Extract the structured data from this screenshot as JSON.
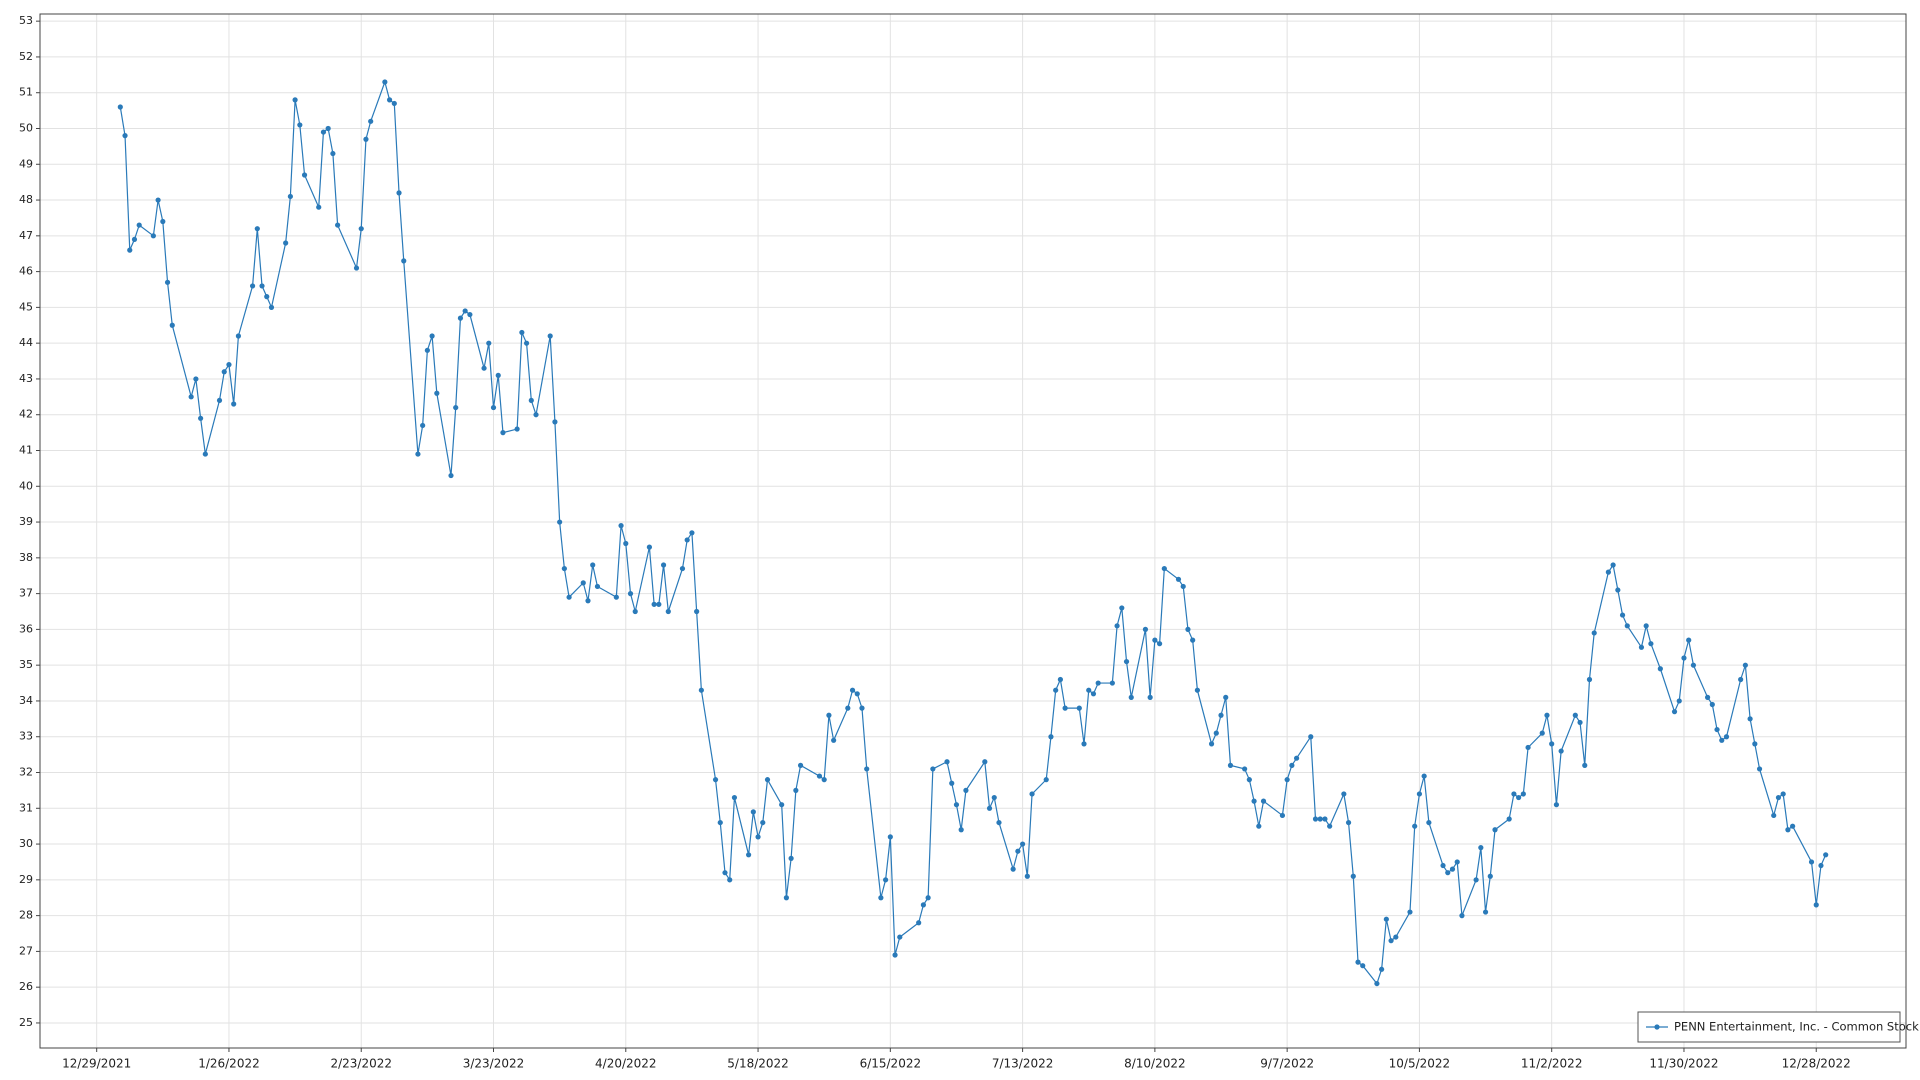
{
  "chart_data": {
    "type": "line",
    "x": [
      "2022-01-03",
      "2022-01-04",
      "2022-01-05",
      "2022-01-06",
      "2022-01-07",
      "2022-01-10",
      "2022-01-11",
      "2022-01-12",
      "2022-01-13",
      "2022-01-14",
      "2022-01-18",
      "2022-01-19",
      "2022-01-20",
      "2022-01-21",
      "2022-01-24",
      "2022-01-25",
      "2022-01-26",
      "2022-01-27",
      "2022-01-28",
      "2022-01-31",
      "2022-02-01",
      "2022-02-02",
      "2022-02-03",
      "2022-02-04",
      "2022-02-07",
      "2022-02-08",
      "2022-02-09",
      "2022-02-10",
      "2022-02-11",
      "2022-02-14",
      "2022-02-15",
      "2022-02-16",
      "2022-02-17",
      "2022-02-18",
      "2022-02-22",
      "2022-02-23",
      "2022-02-24",
      "2022-02-25",
      "2022-02-28",
      "2022-03-01",
      "2022-03-02",
      "2022-03-03",
      "2022-03-04",
      "2022-03-07",
      "2022-03-08",
      "2022-03-09",
      "2022-03-10",
      "2022-03-11",
      "2022-03-14",
      "2022-03-15",
      "2022-03-16",
      "2022-03-17",
      "2022-03-18",
      "2022-03-21",
      "2022-03-22",
      "2022-03-23",
      "2022-03-24",
      "2022-03-25",
      "2022-03-28",
      "2022-03-29",
      "2022-03-30",
      "2022-03-31",
      "2022-04-01",
      "2022-04-04",
      "2022-04-05",
      "2022-04-06",
      "2022-04-07",
      "2022-04-08",
      "2022-04-11",
      "2022-04-12",
      "2022-04-13",
      "2022-04-14",
      "2022-04-18",
      "2022-04-19",
      "2022-04-20",
      "2022-04-21",
      "2022-04-22",
      "2022-04-25",
      "2022-04-26",
      "2022-04-27",
      "2022-04-28",
      "2022-04-29",
      "2022-05-02",
      "2022-05-03",
      "2022-05-04",
      "2022-05-05",
      "2022-05-06",
      "2022-05-09",
      "2022-05-10",
      "2022-05-11",
      "2022-05-12",
      "2022-05-13",
      "2022-05-16",
      "2022-05-17",
      "2022-05-18",
      "2022-05-19",
      "2022-05-20",
      "2022-05-23",
      "2022-05-24",
      "2022-05-25",
      "2022-05-26",
      "2022-05-27",
      "2022-05-31",
      "2022-06-01",
      "2022-06-02",
      "2022-06-03",
      "2022-06-06",
      "2022-06-07",
      "2022-06-08",
      "2022-06-09",
      "2022-06-10",
      "2022-06-13",
      "2022-06-14",
      "2022-06-15",
      "2022-06-16",
      "2022-06-17",
      "2022-06-21",
      "2022-06-22",
      "2022-06-23",
      "2022-06-24",
      "2022-06-27",
      "2022-06-28",
      "2022-06-29",
      "2022-06-30",
      "2022-07-01",
      "2022-07-05",
      "2022-07-06",
      "2022-07-07",
      "2022-07-08",
      "2022-07-11",
      "2022-07-12",
      "2022-07-13",
      "2022-07-14",
      "2022-07-15",
      "2022-07-18",
      "2022-07-19",
      "2022-07-20",
      "2022-07-21",
      "2022-07-22",
      "2022-07-25",
      "2022-07-26",
      "2022-07-27",
      "2022-07-28",
      "2022-07-29",
      "2022-08-01",
      "2022-08-02",
      "2022-08-03",
      "2022-08-04",
      "2022-08-05",
      "2022-08-08",
      "2022-08-09",
      "2022-08-10",
      "2022-08-11",
      "2022-08-12",
      "2022-08-15",
      "2022-08-16",
      "2022-08-17",
      "2022-08-18",
      "2022-08-19",
      "2022-08-22",
      "2022-08-23",
      "2022-08-24",
      "2022-08-25",
      "2022-08-26",
      "2022-08-29",
      "2022-08-30",
      "2022-08-31",
      "2022-09-01",
      "2022-09-02",
      "2022-09-06",
      "2022-09-07",
      "2022-09-08",
      "2022-09-09",
      "2022-09-12",
      "2022-09-13",
      "2022-09-14",
      "2022-09-15",
      "2022-09-16",
      "2022-09-19",
      "2022-09-20",
      "2022-09-21",
      "2022-09-22",
      "2022-09-23",
      "2022-09-26",
      "2022-09-27",
      "2022-09-28",
      "2022-09-29",
      "2022-09-30",
      "2022-10-03",
      "2022-10-04",
      "2022-10-05",
      "2022-10-06",
      "2022-10-07",
      "2022-10-10",
      "2022-10-11",
      "2022-10-12",
      "2022-10-13",
      "2022-10-14",
      "2022-10-17",
      "2022-10-18",
      "2022-10-19",
      "2022-10-20",
      "2022-10-21",
      "2022-10-24",
      "2022-10-25",
      "2022-10-26",
      "2022-10-27",
      "2022-10-28",
      "2022-10-31",
      "2022-11-01",
      "2022-11-02",
      "2022-11-03",
      "2022-11-04",
      "2022-11-07",
      "2022-11-08",
      "2022-11-09",
      "2022-11-10",
      "2022-11-11",
      "2022-11-14",
      "2022-11-15",
      "2022-11-16",
      "2022-11-17",
      "2022-11-18",
      "2022-11-21",
      "2022-11-22",
      "2022-11-23",
      "2022-11-25",
      "2022-11-28",
      "2022-11-29",
      "2022-11-30",
      "2022-12-01",
      "2022-12-02",
      "2022-12-05",
      "2022-12-06",
      "2022-12-07",
      "2022-12-08",
      "2022-12-09",
      "2022-12-12",
      "2022-12-13",
      "2022-12-14",
      "2022-12-15",
      "2022-12-16",
      "2022-12-19",
      "2022-12-20",
      "2022-12-21",
      "2022-12-22",
      "2022-12-23",
      "2022-12-27",
      "2022-12-28",
      "2022-12-29",
      "2022-12-30"
    ],
    "series": [
      {
        "name": "PENN Entertainment, Inc. - Common Stock",
        "color": "#2a7ab9",
        "values": [
          50.6,
          49.8,
          46.6,
          46.9,
          47.3,
          47.0,
          48.0,
          47.4,
          45.7,
          44.5,
          42.5,
          43.0,
          41.9,
          40.9,
          42.4,
          43.2,
          43.4,
          42.3,
          44.2,
          45.6,
          47.2,
          45.6,
          45.3,
          45.0,
          46.8,
          48.1,
          50.8,
          50.1,
          48.7,
          47.8,
          49.9,
          50.0,
          49.3,
          47.3,
          46.1,
          47.2,
          49.7,
          50.2,
          51.3,
          50.8,
          50.7,
          48.2,
          46.3,
          40.9,
          41.7,
          43.8,
          44.2,
          42.6,
          40.3,
          42.2,
          44.7,
          44.9,
          44.8,
          43.3,
          44.0,
          42.2,
          43.1,
          41.5,
          41.6,
          44.3,
          44.0,
          42.4,
          42.0,
          44.2,
          41.8,
          39.0,
          37.7,
          36.9,
          37.3,
          36.8,
          37.8,
          37.2,
          36.9,
          38.9,
          38.4,
          37.0,
          36.5,
          38.3,
          36.7,
          36.7,
          37.8,
          36.5,
          37.7,
          38.5,
          38.7,
          36.5,
          34.3,
          31.8,
          30.6,
          29.2,
          29.0,
          31.3,
          29.7,
          30.9,
          30.2,
          30.6,
          31.8,
          31.1,
          28.5,
          29.6,
          31.5,
          32.2,
          31.9,
          31.8,
          33.6,
          32.9,
          33.8,
          34.3,
          34.2,
          33.8,
          32.1,
          28.5,
          29.0,
          30.2,
          26.9,
          27.4,
          27.8,
          28.3,
          28.5,
          32.1,
          32.3,
          31.7,
          31.1,
          30.4,
          31.5,
          32.3,
          31.0,
          31.3,
          30.6,
          29.3,
          29.8,
          30.0,
          29.1,
          31.4,
          31.8,
          33.0,
          34.3,
          34.6,
          33.8,
          33.8,
          32.8,
          34.3,
          34.2,
          34.5,
          34.5,
          36.1,
          36.6,
          35.1,
          34.1,
          36.0,
          34.1,
          35.7,
          35.6,
          37.7,
          37.4,
          37.2,
          36.0,
          35.7,
          34.3,
          32.8,
          33.1,
          33.6,
          34.1,
          32.2,
          32.1,
          31.8,
          31.2,
          30.5,
          31.2,
          30.8,
          31.8,
          32.2,
          32.4,
          33.0,
          30.7,
          30.7,
          30.7,
          30.5,
          31.4,
          30.6,
          29.1,
          26.7,
          26.6,
          26.1,
          26.5,
          27.9,
          27.3,
          27.4,
          28.1,
          30.5,
          31.4,
          31.9,
          30.6,
          29.4,
          29.2,
          29.3,
          29.5,
          28.0,
          29.0,
          29.9,
          28.1,
          29.1,
          30.4,
          30.7,
          31.4,
          31.3,
          31.4,
          32.7,
          33.1,
          33.6,
          32.8,
          31.1,
          32.6,
          33.6,
          33.4,
          32.2,
          34.6,
          35.9,
          37.6,
          37.8,
          37.1,
          36.4,
          36.1,
          35.5,
          36.1,
          35.6,
          34.9,
          33.7,
          34.0,
          35.2,
          35.7,
          35.0,
          34.1,
          33.9,
          33.2,
          32.9,
          33.0,
          34.6,
          35.0,
          33.5,
          32.8,
          32.1,
          30.8,
          31.3,
          31.4,
          30.4,
          30.5,
          29.5,
          28.3,
          29.4,
          29.7
        ]
      }
    ],
    "xlim": [
      "2021-12-17",
      "2023-01-16"
    ],
    "xticks": [
      {
        "value": "2021-12-29",
        "label": "12/29/2021"
      },
      {
        "value": "2022-01-26",
        "label": "1/26/2022"
      },
      {
        "value": "2022-02-23",
        "label": "2/23/2022"
      },
      {
        "value": "2022-03-23",
        "label": "3/23/2022"
      },
      {
        "value": "2022-04-20",
        "label": "4/20/2022"
      },
      {
        "value": "2022-05-18",
        "label": "5/18/2022"
      },
      {
        "value": "2022-06-15",
        "label": "6/15/2022"
      },
      {
        "value": "2022-07-13",
        "label": "7/13/2022"
      },
      {
        "value": "2022-08-10",
        "label": "8/10/2022"
      },
      {
        "value": "2022-09-07",
        "label": "9/7/2022"
      },
      {
        "value": "2022-10-05",
        "label": "10/5/2022"
      },
      {
        "value": "2022-11-02",
        "label": "11/2/2022"
      },
      {
        "value": "2022-11-30",
        "label": "11/30/2022"
      },
      {
        "value": "2022-12-28",
        "label": "12/28/2022"
      }
    ],
    "ylim": [
      24.3,
      53.2
    ],
    "yticks": [
      25,
      26,
      27,
      28,
      29,
      30,
      31,
      32,
      33,
      34,
      35,
      36,
      37,
      38,
      39,
      40,
      41,
      42,
      43,
      44,
      45,
      46,
      47,
      48,
      49,
      50,
      51,
      52,
      53
    ],
    "grid": true,
    "legend": "lower right"
  }
}
